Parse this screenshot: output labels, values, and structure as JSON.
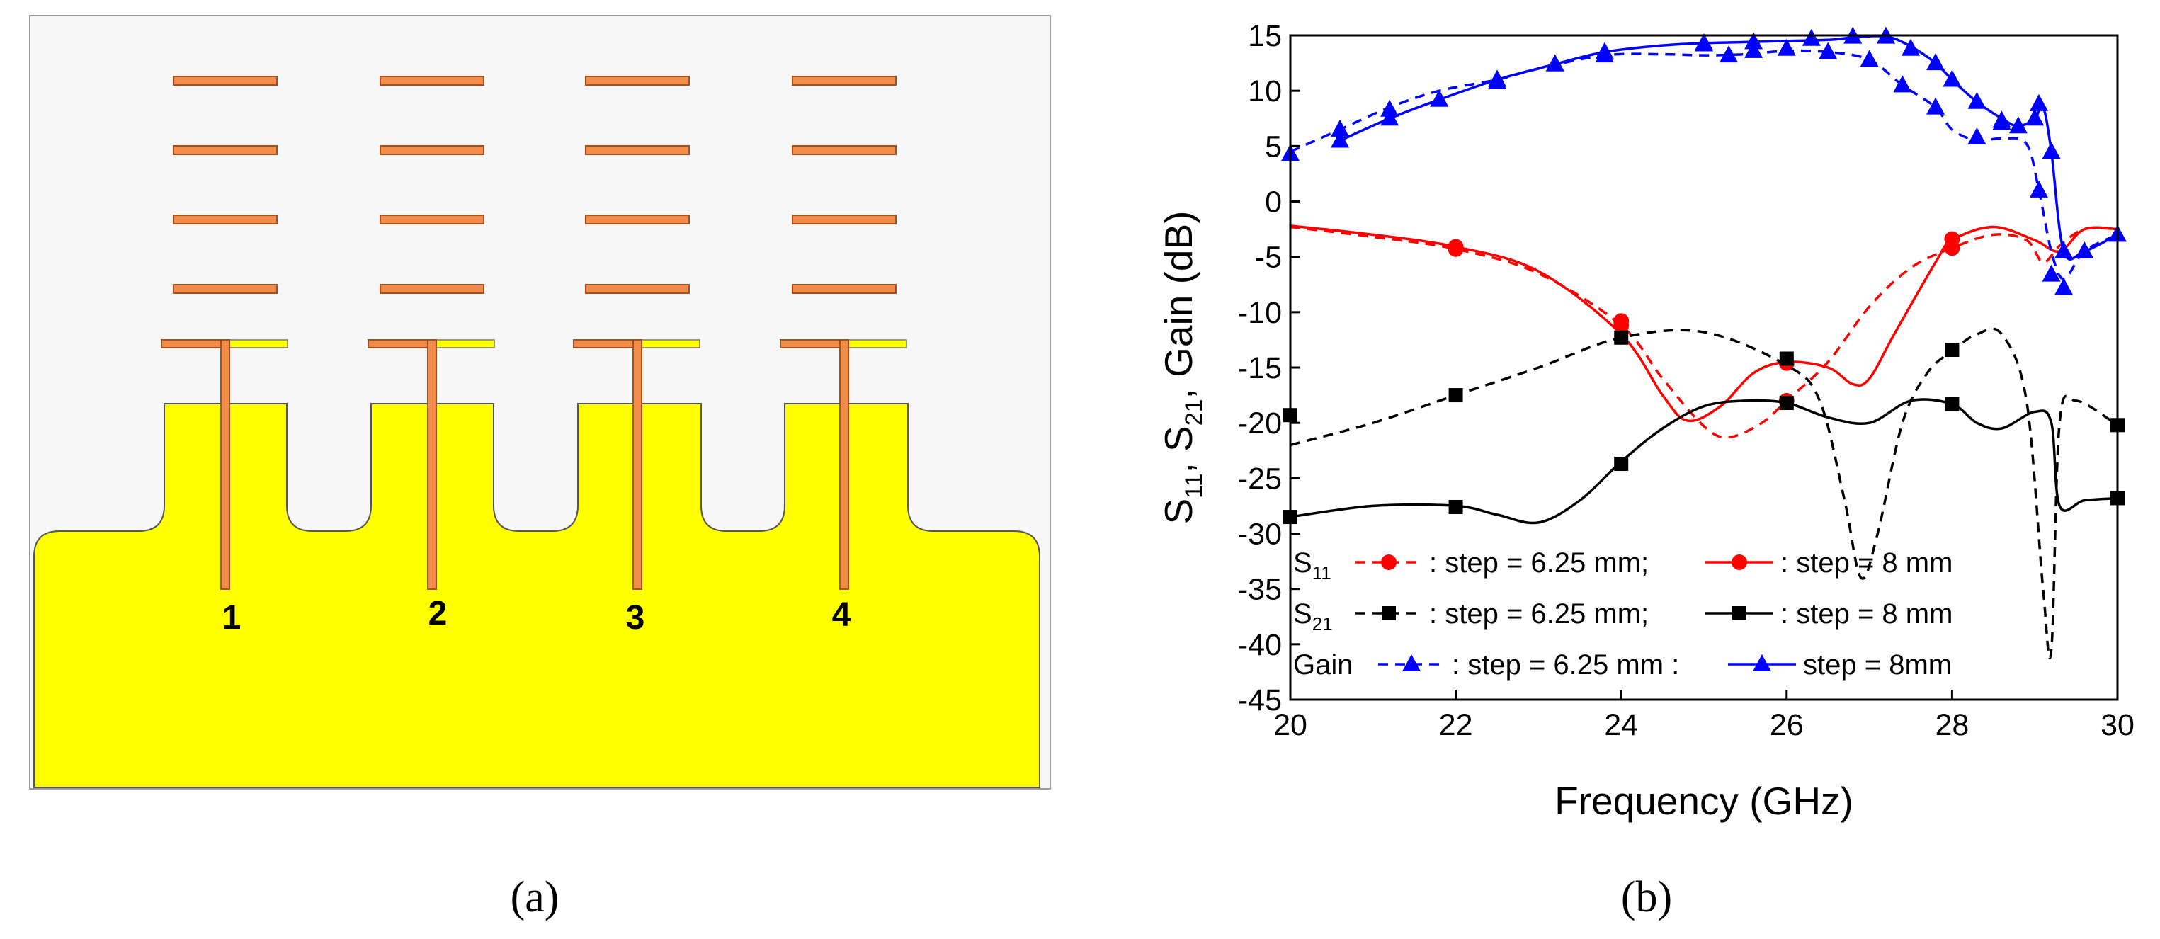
{
  "panel_a": {
    "port_labels": [
      "1",
      "2",
      "3",
      "4"
    ],
    "caption": "(a)",
    "colors": {
      "substrate": "#ffff00",
      "director": "#f28c4a",
      "director_edge": "#a8501c",
      "background": "#f7f7f7"
    }
  },
  "panel_b": {
    "caption": "(b)"
  },
  "chart_data": {
    "type": "line",
    "title": "",
    "xlabel": "Frequency (GHz)",
    "ylabel_parts": [
      "S",
      "11",
      ", S",
      "21",
      ", Gain (dB)"
    ],
    "xlim": [
      20,
      30
    ],
    "ylim": [
      -45,
      15
    ],
    "xticks": [
      20,
      22,
      24,
      26,
      28,
      30
    ],
    "yticks": [
      15,
      10,
      5,
      0,
      -5,
      -10,
      -15,
      -20,
      -25,
      -30,
      -35,
      -40,
      -45
    ],
    "grid": false,
    "legend": {
      "placement": "lower-left",
      "rows": [
        {
          "label_main": "S",
          "label_sub": "11",
          "text1": ": step = 6.25 mm;",
          "text2": ": step = 8 mm",
          "dashed": "s11_625",
          "solid": "s11_8"
        },
        {
          "label_main": "S",
          "label_sub": "21",
          "text1": ": step = 6.25 mm;",
          "text2": ": step = 8 mm",
          "dashed": "s21_625",
          "solid": "s21_8"
        },
        {
          "label_main": "Gain",
          "label_sub": "",
          "text1": ": step = 6.25 mm :",
          "text2": "step = 8mm",
          "dashed": "gain_625",
          "solid": "gain_8"
        }
      ]
    },
    "series": [
      {
        "id": "s11_625",
        "name": "S11 : step = 6.25 mm",
        "color": "#ff0000",
        "dash": true,
        "marker": "circle",
        "x": [
          20,
          21,
          22,
          23,
          24,
          24.5,
          25,
          25.3,
          25.7,
          26,
          26.5,
          27,
          27.5,
          28,
          28.5,
          28.9,
          29.1,
          29.3,
          29.6,
          30
        ],
        "y": [
          -2.3,
          -3.2,
          -4.3,
          -6.5,
          -11.2,
          -16,
          -20.3,
          -21.3,
          -20,
          -18,
          -14.5,
          -9.5,
          -6,
          -4.2,
          -3,
          -3.5,
          -5.5,
          -4,
          -2.5,
          -2.5
        ],
        "marker_x": [
          22,
          24,
          26,
          28
        ],
        "marker_y": [
          -4.3,
          -11.2,
          -18,
          -4.2
        ]
      },
      {
        "id": "s11_8",
        "name": "S11 : step = 8 mm",
        "color": "#ff0000",
        "dash": false,
        "marker": "circle",
        "x": [
          20,
          21,
          22,
          23,
          24,
          24.5,
          24.8,
          25.2,
          25.6,
          26,
          26.5,
          26.8,
          27,
          27.3,
          27.8,
          28,
          28.5,
          29,
          29.3,
          29.6,
          30
        ],
        "y": [
          -2.2,
          -3,
          -4.1,
          -6.3,
          -12,
          -17.5,
          -19.8,
          -18.5,
          -15.5,
          -14.5,
          -15,
          -16.5,
          -16,
          -12,
          -5.5,
          -3.5,
          -2.3,
          -3.5,
          -4.5,
          -2.5,
          -2.5
        ],
        "marker_x": [
          22,
          24,
          26,
          28
        ],
        "marker_y": [
          -4.1,
          -10.8,
          -14.6,
          -3.4
        ]
      },
      {
        "id": "s21_625",
        "name": "S21 : step = 6.25 mm",
        "color": "#000000",
        "dash": true,
        "marker": "square",
        "x": [
          20,
          21,
          22,
          23,
          24,
          25,
          26,
          26.4,
          26.7,
          26.9,
          27.1,
          27.4,
          27.7,
          28,
          28.3,
          28.6,
          28.9,
          29.1,
          29.2,
          29.3,
          29.5,
          30
        ],
        "y": [
          -22,
          -20,
          -17.5,
          -15,
          -12.3,
          -11.8,
          -14.8,
          -18,
          -27,
          -34,
          -30,
          -20,
          -15.5,
          -13.5,
          -12,
          -12,
          -18,
          -35,
          -40.5,
          -20,
          -18,
          -20.2
        ],
        "marker_x": [
          20,
          22,
          24,
          26,
          28,
          30
        ],
        "marker_y": [
          -19.3,
          -17.5,
          -12.3,
          -14.2,
          -13.4,
          -20.2
        ]
      },
      {
        "id": "s21_8",
        "name": "S21 : step = 8 mm",
        "color": "#000000",
        "dash": false,
        "marker": "square",
        "x": [
          20,
          21,
          22,
          22.5,
          23,
          23.5,
          24,
          24.5,
          25,
          25.5,
          26,
          26.5,
          27,
          27.5,
          28,
          28.3,
          28.6,
          29,
          29.2,
          29.3,
          29.6,
          30
        ],
        "y": [
          -28.5,
          -27.5,
          -27.5,
          -28.3,
          -29,
          -27,
          -23.5,
          -20.5,
          -18.5,
          -18,
          -18.2,
          -19.5,
          -20,
          -18,
          -18.3,
          -20,
          -20.5,
          -19,
          -20,
          -27.5,
          -27,
          -26.8
        ],
        "marker_x": [
          20,
          22,
          24,
          26,
          28,
          30
        ],
        "marker_y": [
          -28.5,
          -27.6,
          -23.7,
          -18.2,
          -18.3,
          -26.8
        ]
      },
      {
        "id": "gain_625",
        "name": "Gain : step = 6.25 mm",
        "color": "#0000ff",
        "dash": true,
        "marker": "triangle",
        "x": [
          20,
          20.6,
          21.2,
          21.8,
          22.5,
          23,
          23.8,
          24.5,
          25,
          25.5,
          26,
          26.5,
          27,
          27.4,
          27.8,
          28,
          28.3,
          28.6,
          28.9,
          29.05,
          29.2,
          29.35,
          29.6,
          30
        ],
        "y": [
          4.5,
          6.5,
          8.5,
          10,
          11,
          12,
          13.2,
          13.3,
          13.2,
          13.3,
          13.6,
          13.5,
          12.8,
          10.5,
          8.5,
          6.5,
          5.5,
          5.7,
          5.2,
          1,
          -4.5,
          -7,
          -4.5,
          -3
        ],
        "marker_x": [
          20,
          20.6,
          21.2,
          21.8,
          22.5,
          23.2,
          23.8,
          25,
          25.3,
          25.6,
          26,
          26.5,
          27,
          27.4,
          27.8,
          28.3,
          28.6,
          29.05,
          29.2,
          29.35
        ],
        "marker_y": [
          4.3,
          6.5,
          8.3,
          9.2,
          11,
          12.4,
          13.2,
          14.2,
          13.2,
          13.6,
          13.8,
          13.5,
          12.8,
          10.5,
          8.5,
          5.8,
          7.1,
          1,
          -6.6,
          -7.8
        ]
      },
      {
        "id": "gain_8",
        "name": "Gain : step = 8mm",
        "color": "#0000ff",
        "dash": false,
        "marker": "triangle",
        "x": [
          20.6,
          21.2,
          21.8,
          22.5,
          23.2,
          23.8,
          24.5,
          25,
          25.5,
          26,
          26.5,
          26.8,
          27.2,
          27.5,
          27.8,
          28,
          28.3,
          28.6,
          28.8,
          29,
          29.1,
          29.2,
          29.35,
          29.6,
          30
        ],
        "y": [
          5.5,
          7.5,
          9.2,
          11,
          12.4,
          13.5,
          14.1,
          14.3,
          14.4,
          14.5,
          14.6,
          14.8,
          14.9,
          14,
          12.5,
          11,
          9,
          7.5,
          6.8,
          7.5,
          8.5,
          4.5,
          -4.5,
          -4.5,
          -3
        ],
        "marker_x": [
          20.6,
          21.2,
          21.8,
          22.5,
          23.2,
          23.8,
          25,
          25.6,
          26.3,
          26.8,
          27.2,
          27.5,
          27.8,
          28,
          28.3,
          28.6,
          28.8,
          29,
          29.05,
          29.2,
          29.35,
          29.6,
          30
        ],
        "marker_y": [
          5.5,
          7.5,
          9.2,
          10.8,
          12.4,
          13.5,
          14.3,
          14.4,
          14.7,
          14.9,
          14.9,
          13.8,
          12.5,
          11,
          9,
          7.3,
          6.8,
          7.5,
          8.8,
          4.5,
          -4.5,
          -4.5,
          -3
        ]
      }
    ]
  }
}
